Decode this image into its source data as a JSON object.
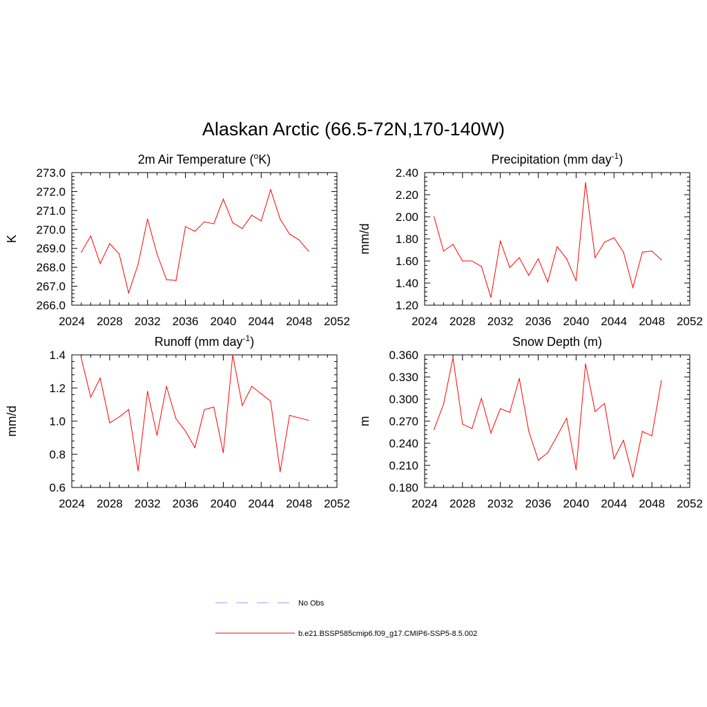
{
  "figure_title": "Alaskan Arctic (66.5-72N,170-140W)",
  "legend": {
    "items": [
      {
        "label": "No Obs",
        "color": "#9999ff",
        "style": "dashed"
      },
      {
        "label": "b.e21.BSSP585cmip6.f09_g17.CMIP6-SSP5-8.5.002",
        "color": "#ff0000",
        "style": "solid"
      }
    ]
  },
  "chart_data": [
    {
      "type": "line",
      "title": "2m Air Temperature (°K)",
      "title_parts": [
        "2m Air Temperature (",
        "o",
        "K)"
      ],
      "ylabel": "K",
      "xlim": [
        2024,
        2052
      ],
      "ylim": [
        266.0,
        273.0
      ],
      "xticks": [
        "2024",
        "2028",
        "2032",
        "2036",
        "2040",
        "2044",
        "2048",
        "2052"
      ],
      "yticks": [
        "266.0",
        "267.0",
        "268.0",
        "269.0",
        "270.0",
        "271.0",
        "272.0",
        "273.0"
      ],
      "series": [
        {
          "color": "#ff0000",
          "x": [
            2025,
            2026,
            2027,
            2028,
            2029,
            2030,
            2031,
            2032,
            2033,
            2034,
            2035,
            2036,
            2037,
            2038,
            2039,
            2040,
            2041,
            2042,
            2043,
            2044,
            2045,
            2046,
            2047,
            2048,
            2049
          ],
          "y": [
            268.8,
            269.65,
            268.2,
            269.25,
            268.7,
            266.65,
            268.15,
            270.55,
            268.7,
            267.35,
            267.3,
            270.15,
            269.9,
            270.4,
            270.3,
            271.6,
            270.35,
            270.05,
            270.75,
            270.45,
            272.1,
            270.55,
            269.75,
            269.45,
            268.85
          ]
        }
      ]
    },
    {
      "type": "line",
      "title": "Precipitation (mm day-1)",
      "title_parts": [
        "Precipitation (mm day",
        "-1",
        ")"
      ],
      "ylabel": "mm/d",
      "xlim": [
        2024,
        2052
      ],
      "ylim": [
        1.2,
        2.4
      ],
      "xticks": [
        "2024",
        "2028",
        "2032",
        "2036",
        "2040",
        "2044",
        "2048",
        "2052"
      ],
      "yticks": [
        "1.20",
        "1.40",
        "1.60",
        "1.80",
        "2.00",
        "2.20",
        "2.40"
      ],
      "series": [
        {
          "color": "#ff0000",
          "x": [
            2025,
            2026,
            2027,
            2028,
            2029,
            2030,
            2031,
            2032,
            2033,
            2034,
            2035,
            2036,
            2037,
            2038,
            2039,
            2040,
            2041,
            2042,
            2043,
            2044,
            2045,
            2046,
            2047,
            2048,
            2049
          ],
          "y": [
            2.0,
            1.69,
            1.75,
            1.6,
            1.6,
            1.55,
            1.27,
            1.78,
            1.54,
            1.63,
            1.47,
            1.62,
            1.41,
            1.73,
            1.62,
            1.42,
            2.31,
            1.63,
            1.77,
            1.81,
            1.68,
            1.36,
            1.68,
            1.69,
            1.61
          ]
        }
      ]
    },
    {
      "type": "line",
      "title": "Runoff (mm day-1)",
      "title_parts": [
        "Runoff (mm day",
        "-1",
        ")"
      ],
      "ylabel": "mm/d",
      "xlim": [
        2024,
        2052
      ],
      "ylim": [
        0.6,
        1.4
      ],
      "xticks": [
        "2024",
        "2028",
        "2032",
        "2036",
        "2040",
        "2044",
        "2048",
        "2052"
      ],
      "yticks": [
        "0.6",
        "0.8",
        "1.0",
        "1.2",
        "1.4"
      ],
      "series": [
        {
          "color": "#ff0000",
          "x": [
            2025,
            2026,
            2027,
            2028,
            2029,
            2030,
            2031,
            2032,
            2033,
            2034,
            2035,
            2036,
            2037,
            2038,
            2039,
            2040,
            2041,
            2042,
            2043,
            2044,
            2045,
            2046,
            2047,
            2048,
            2049
          ],
          "y": [
            1.38,
            1.145,
            1.26,
            0.99,
            1.025,
            1.07,
            0.7,
            1.18,
            0.915,
            1.21,
            1.015,
            0.94,
            0.84,
            1.07,
            1.085,
            0.81,
            1.4,
            1.095,
            1.21,
            1.165,
            1.12,
            0.695,
            1.035,
            1.02,
            1.005
          ]
        }
      ]
    },
    {
      "type": "line",
      "title": "Snow Depth (m)",
      "title_parts": [
        "Snow Depth (m)",
        "",
        ""
      ],
      "ylabel": "m",
      "xlim": [
        2024,
        2052
      ],
      "ylim": [
        0.18,
        0.36
      ],
      "xticks": [
        "2024",
        "2028",
        "2032",
        "2036",
        "2040",
        "2044",
        "2048",
        "2052"
      ],
      "yticks": [
        "0.180",
        "0.210",
        "0.240",
        "0.270",
        "0.300",
        "0.330",
        "0.360"
      ],
      "series": [
        {
          "color": "#ff0000",
          "x": [
            2025,
            2026,
            2027,
            2028,
            2029,
            2030,
            2031,
            2032,
            2033,
            2034,
            2035,
            2036,
            2037,
            2038,
            2039,
            2040,
            2041,
            2042,
            2043,
            2044,
            2045,
            2046,
            2047,
            2048,
            2049
          ],
          "y": [
            0.259,
            0.293,
            0.356,
            0.266,
            0.26,
            0.301,
            0.254,
            0.287,
            0.282,
            0.328,
            0.256,
            0.217,
            0.227,
            0.25,
            0.274,
            0.204,
            0.348,
            0.283,
            0.294,
            0.219,
            0.244,
            0.194,
            0.256,
            0.25,
            0.325
          ]
        }
      ]
    }
  ]
}
